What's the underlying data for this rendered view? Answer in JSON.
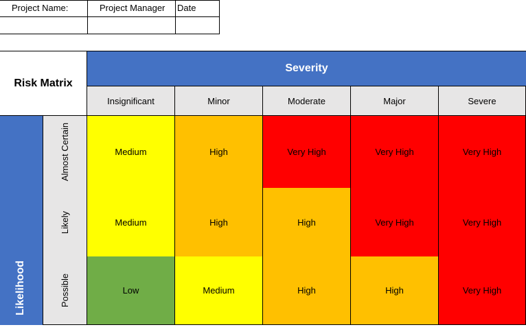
{
  "project_info": {
    "headers": [
      "Project Name:",
      "Project Manager",
      "Date"
    ],
    "values": [
      "",
      "",
      ""
    ]
  },
  "matrix": {
    "title": "Risk Matrix",
    "severity_label": "Severity",
    "likelihood_label": "Likelihood",
    "severity_levels": [
      "Insignificant",
      "Minor",
      "Moderate",
      "Major",
      "Severe"
    ],
    "rows": [
      {
        "likelihood": "Almost Certain",
        "cells": [
          "Medium",
          "High",
          "Very High",
          "Very High",
          "Very High"
        ]
      },
      {
        "likelihood": "Likely",
        "cells": [
          "Medium",
          "High",
          "High",
          "Very High",
          "Very High"
        ]
      },
      {
        "likelihood": "Possible",
        "cells": [
          "Low",
          "Medium",
          "High",
          "High",
          "Very High"
        ]
      }
    ],
    "colors": {
      "Low": "#70ad47",
      "Medium": "#ffff00",
      "High": "#ffc000",
      "Very High": "#ff0000",
      "header_blue": "#4472c4",
      "header_grey": "#e7e6e6"
    }
  }
}
